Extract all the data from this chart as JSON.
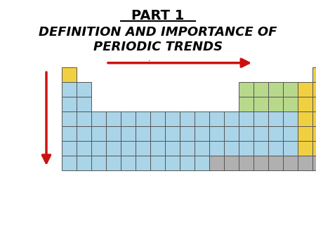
{
  "title_line1": "PART 1",
  "title_line2": "DEFINITION AND IMPORTANCE OF",
  "title_line3": "PERIODIC TRENDS",
  "bg_color": "#ffffff",
  "color_blue": "#aad4e8",
  "color_yellow": "#f0d040",
  "color_green": "#b8d88b",
  "color_gray": "#b0b0b0",
  "color_border": "#555555",
  "arrow_color": "#cc1111"
}
